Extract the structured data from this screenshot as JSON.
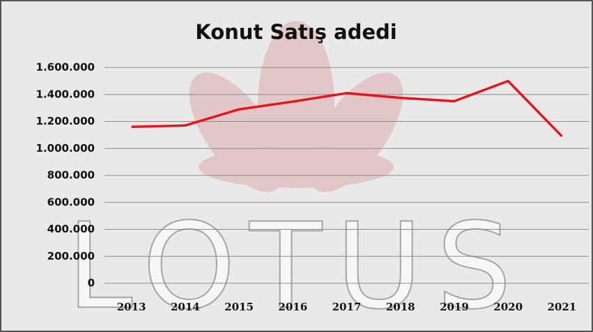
{
  "chart_data": {
    "type": "line",
    "title": "Konut Satış adedi",
    "watermark": "LOTUS",
    "categories": [
      "2013",
      "2014",
      "2015",
      "2016",
      "2017",
      "2018",
      "2019",
      "2020",
      "2021"
    ],
    "values": [
      1160000,
      1170000,
      1290000,
      1347000,
      1410000,
      1375000,
      1350000,
      1500000,
      1090000
    ],
    "color": "#e8141b",
    "ylim": [
      0,
      1600000
    ],
    "yticks": [
      0,
      {
        "value": 200000,
        "label": "200.000"
      },
      {
        "value": 400000,
        "label": "400.000"
      },
      {
        "value": 600000,
        "label": "600.000"
      },
      {
        "value": 800000,
        "label": "800.000"
      },
      {
        "value": 1000000,
        "label": "1.000.000"
      },
      {
        "value": 1200000,
        "label": "1.200.000"
      },
      {
        "value": 1400000,
        "label": "1.400.000"
      },
      {
        "value": 1600000,
        "label": "1.600.000"
      }
    ],
    "grid": true
  }
}
